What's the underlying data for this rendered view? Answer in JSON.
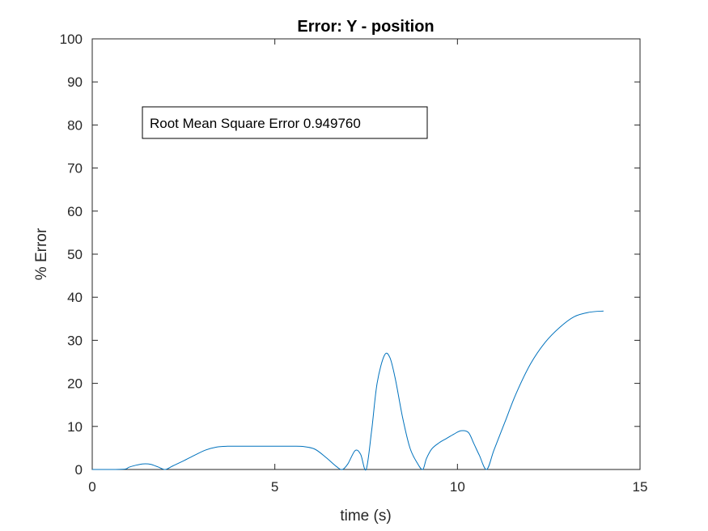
{
  "chart_data": {
    "type": "line",
    "title": "Error: Y - position",
    "xlabel": "time (s)",
    "ylabel": "% Error",
    "xlim": [
      0,
      15
    ],
    "ylim": [
      0,
      100
    ],
    "xticks": [
      0,
      5,
      10,
      15
    ],
    "yticks": [
      0,
      10,
      20,
      30,
      40,
      50,
      60,
      70,
      80,
      90,
      100
    ],
    "grid": false,
    "line_color": "#0072BD",
    "annotation": "Root Mean Square Error 0.949760",
    "series": [
      {
        "x": [
          0,
          0.5,
          0.9,
          1.0,
          1.2,
          1.4,
          1.6,
          1.8,
          2.0,
          2.2,
          2.5,
          2.8,
          3.1,
          3.4,
          3.7,
          4.0,
          4.5,
          5.0,
          5.5,
          5.8,
          6.1,
          6.4,
          6.7,
          6.85,
          7.0,
          7.2,
          7.35,
          7.5,
          7.65,
          7.8,
          8.0,
          8.15,
          8.3,
          8.5,
          8.7,
          8.9,
          9.05,
          9.15,
          9.3,
          9.5,
          9.7,
          9.9,
          10.1,
          10.3,
          10.45,
          10.6,
          10.8,
          11.0,
          11.3,
          11.6,
          12.0,
          12.4,
          12.8,
          13.2,
          13.6,
          14.0
        ],
        "y": [
          0.0,
          0.0,
          0.1,
          0.5,
          1.0,
          1.3,
          1.2,
          0.6,
          0.0,
          0.8,
          2.0,
          3.3,
          4.5,
          5.2,
          5.4,
          5.4,
          5.4,
          5.4,
          5.4,
          5.3,
          4.7,
          2.8,
          0.6,
          0.0,
          1.3,
          4.4,
          3.5,
          0.0,
          9.0,
          20.0,
          26.5,
          26.0,
          21.0,
          12.0,
          5.0,
          1.5,
          0.0,
          2.5,
          4.8,
          6.2,
          7.2,
          8.2,
          9.0,
          8.6,
          6.0,
          3.3,
          0.0,
          4.5,
          11.0,
          17.5,
          24.5,
          29.5,
          33.0,
          35.5,
          36.5,
          36.8
        ]
      }
    ]
  }
}
